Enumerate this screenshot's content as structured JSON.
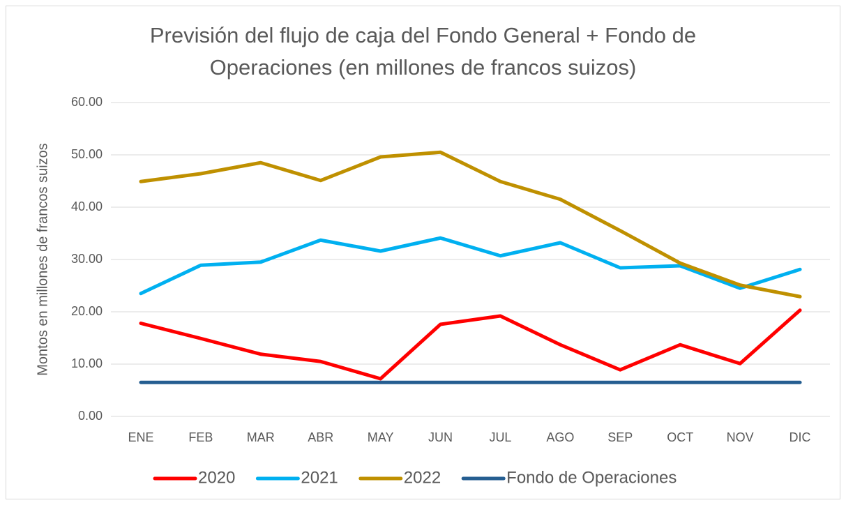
{
  "chart_data": {
    "type": "line",
    "title": "Previsión del flujo de caja del Fondo General + Fondo de Operaciones (en millones de francos suizos)",
    "y_label": "Montos en millones de francos suizos",
    "categories": [
      "ENE",
      "FEB",
      "MAR",
      "ABR",
      "MAY",
      "JUN",
      "JUL",
      "AGO",
      "SEP",
      "OCT",
      "NOV",
      "DIC"
    ],
    "series": [
      {
        "name": "2020",
        "color": "#ff0000",
        "values": [
          17.8,
          14.9,
          11.9,
          10.5,
          7.2,
          17.6,
          19.2,
          13.7,
          8.9,
          13.7,
          10.1,
          20.3
        ]
      },
      {
        "name": "2021",
        "color": "#00b0f0",
        "values": [
          23.5,
          28.9,
          29.5,
          33.7,
          31.6,
          34.1,
          30.7,
          33.2,
          28.4,
          28.8,
          24.5,
          28.1
        ]
      },
      {
        "name": "2022",
        "color": "#bf9000",
        "values": [
          44.9,
          46.4,
          48.5,
          45.1,
          49.6,
          50.5,
          44.9,
          41.5,
          35.5,
          29.3,
          25.1,
          22.9
        ]
      },
      {
        "name": "Fondo de Operaciones",
        "color": "#255e91",
        "values": [
          6.5,
          6.5,
          6.5,
          6.5,
          6.5,
          6.5,
          6.5,
          6.5,
          6.5,
          6.5,
          6.5,
          6.5
        ]
      }
    ],
    "ylim": [
      0,
      60
    ],
    "yticks": [
      {
        "value": 0,
        "label": "0.00"
      },
      {
        "value": 10,
        "label": "10.00"
      },
      {
        "value": 20,
        "label": "20.00"
      },
      {
        "value": 30,
        "label": "30.00"
      },
      {
        "value": 40,
        "label": "40.00"
      },
      {
        "value": 50,
        "label": "50.00"
      },
      {
        "value": 60,
        "label": "60.00"
      }
    ],
    "grid": true,
    "legend": "bottom"
  }
}
